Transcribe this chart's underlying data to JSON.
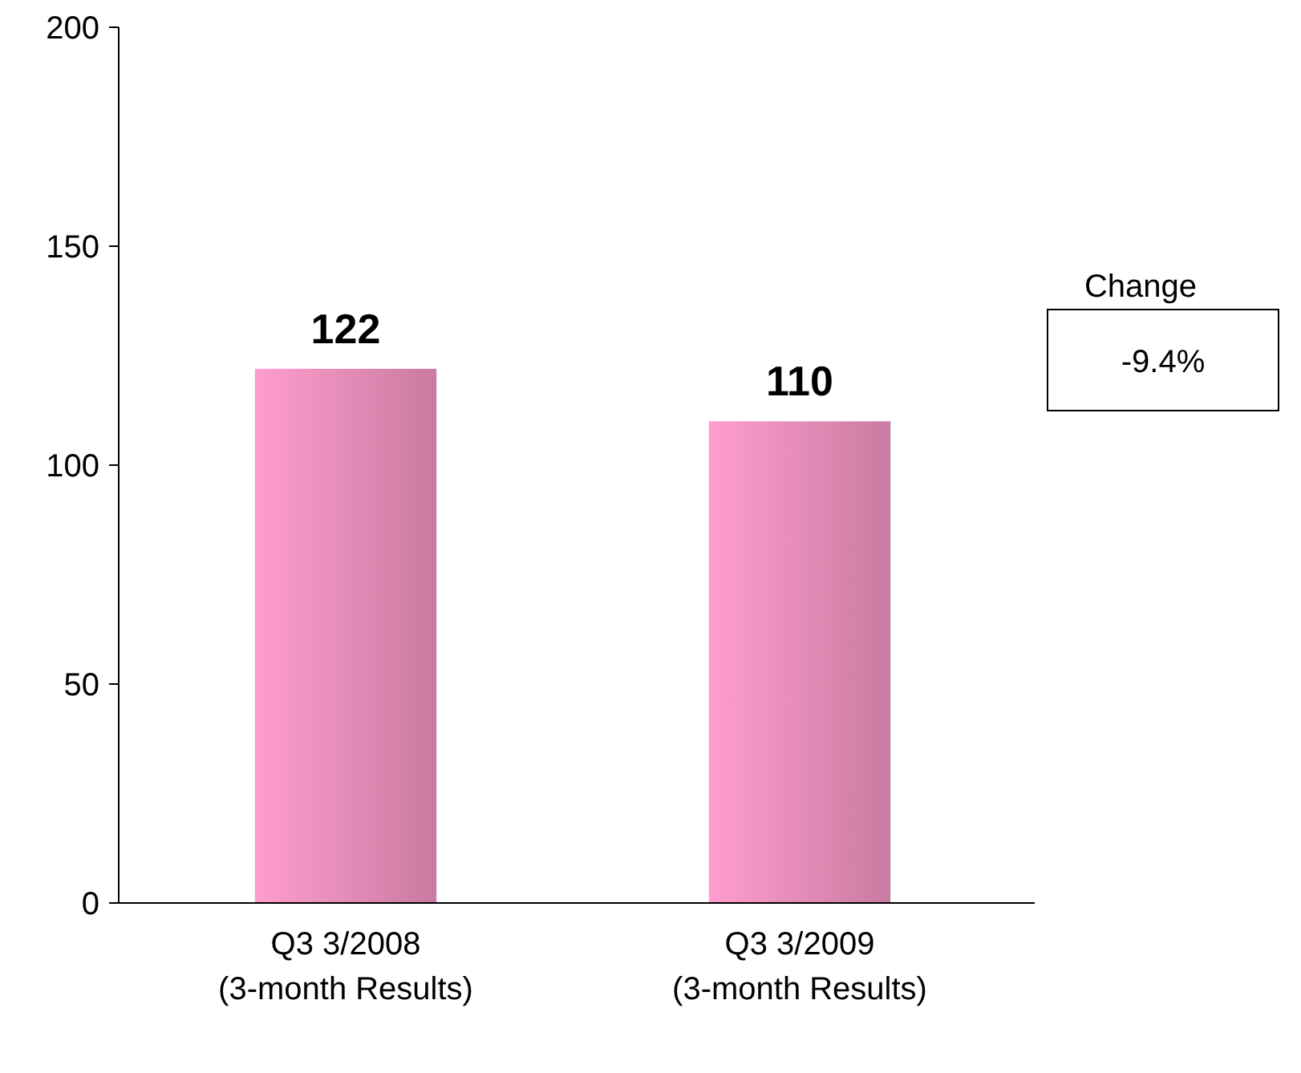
{
  "chart_data": {
    "type": "bar",
    "categories": [
      "Q3 3/2008\n(3-month Results)",
      "Q3 3/2009\n(3-month Results)"
    ],
    "values": [
      122,
      110
    ],
    "color": "#e48bb6",
    "ylim": [
      0,
      200
    ],
    "yticks": [
      0,
      50,
      100,
      150,
      200
    ],
    "grid": false,
    "data_labels": true,
    "annotations": [
      "Change",
      "-9.4%"
    ]
  }
}
